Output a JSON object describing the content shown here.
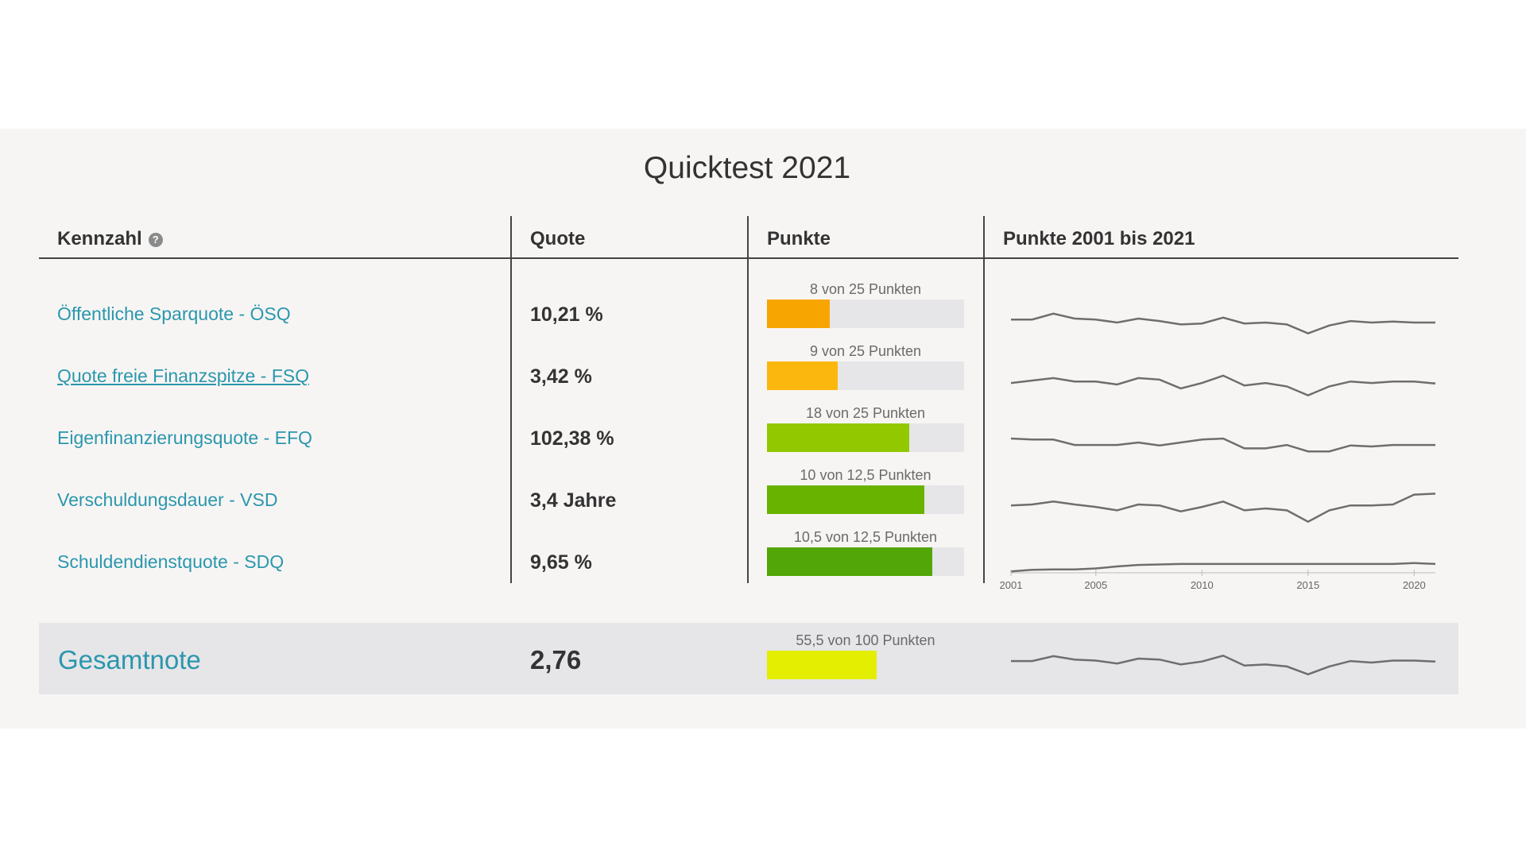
{
  "title": "Quicktest 2021",
  "headers": {
    "kennzahl": "Kennzahl",
    "quote": "Quote",
    "punkte": "Punkte",
    "verlauf": "Punkte 2001 bis 2021"
  },
  "rows": [
    {
      "name": "Öffentliche Sparquote - ÖSQ",
      "link": false,
      "quote": "10,21 %",
      "points_label": "8 von 25 Punkten",
      "points": 8,
      "max": 25,
      "color": "#f7a500",
      "history": [
        0.52,
        0.52,
        0.4,
        0.5,
        0.52,
        0.58,
        0.5,
        0.55,
        0.62,
        0.6,
        0.48,
        0.6,
        0.58,
        0.62,
        0.8,
        0.64,
        0.55,
        0.58,
        0.56,
        0.58,
        0.58
      ]
    },
    {
      "name": "Quote freie Finanzspitze - FSQ",
      "link": true,
      "quote": "3,42 %",
      "points_label": "9 von 25 Punkten",
      "points": 9,
      "max": 25,
      "color": "#fbb70e",
      "history": [
        0.55,
        0.5,
        0.45,
        0.52,
        0.52,
        0.58,
        0.45,
        0.48,
        0.66,
        0.55,
        0.4,
        0.6,
        0.55,
        0.62,
        0.8,
        0.62,
        0.52,
        0.55,
        0.52,
        0.52,
        0.56
      ]
    },
    {
      "name": "Eigenfinanzierungsquote - EFQ",
      "link": false,
      "quote": "102,38 %",
      "points_label": "18 von 25 Punkten",
      "points": 18,
      "max": 25,
      "color": "#92c800",
      "history": [
        0.42,
        0.44,
        0.44,
        0.55,
        0.55,
        0.55,
        0.5,
        0.56,
        0.5,
        0.44,
        0.42,
        0.62,
        0.62,
        0.55,
        0.68,
        0.68,
        0.56,
        0.58,
        0.55,
        0.55,
        0.55
      ]
    },
    {
      "name": "Verschuldungsdauer - VSD",
      "link": false,
      "quote": "3,4 Jahre",
      "points_label": "10 von 12,5 Punkten",
      "points": 10,
      "max": 12.5,
      "color": "#68b300",
      "history": [
        0.52,
        0.5,
        0.44,
        0.5,
        0.55,
        0.62,
        0.5,
        0.52,
        0.64,
        0.55,
        0.44,
        0.62,
        0.58,
        0.62,
        0.85,
        0.62,
        0.52,
        0.52,
        0.5,
        0.3,
        0.28
      ]
    },
    {
      "name": "Schuldendienstquote - SDQ",
      "link": false,
      "quote": "9,65 %",
      "points_label": "10,5 von 12,5 Punkten",
      "points": 10.5,
      "max": 12.5,
      "color": "#52a608",
      "history": [
        0.6,
        0.57,
        0.56,
        0.56,
        0.54,
        0.5,
        0.47,
        0.46,
        0.45,
        0.45,
        0.45,
        0.45,
        0.45,
        0.45,
        0.45,
        0.45,
        0.45,
        0.45,
        0.45,
        0.43,
        0.45
      ]
    }
  ],
  "axis": {
    "years": [
      "2001",
      "2005",
      "2010",
      "2015",
      "2020"
    ],
    "year_values": [
      2001,
      2005,
      2010,
      2015,
      2020
    ],
    "range": [
      2001,
      2021
    ]
  },
  "total": {
    "name": "Gesamtnote",
    "grade": "2,76",
    "points_label": "55,5 von 100 Punkten",
    "points": 55.5,
    "max": 100,
    "color": "#e3ee00",
    "history": [
      0.55,
      0.55,
      0.45,
      0.52,
      0.54,
      0.6,
      0.5,
      0.52,
      0.62,
      0.56,
      0.44,
      0.64,
      0.62,
      0.66,
      0.82,
      0.66,
      0.55,
      0.58,
      0.54,
      0.54,
      0.56
    ]
  }
}
